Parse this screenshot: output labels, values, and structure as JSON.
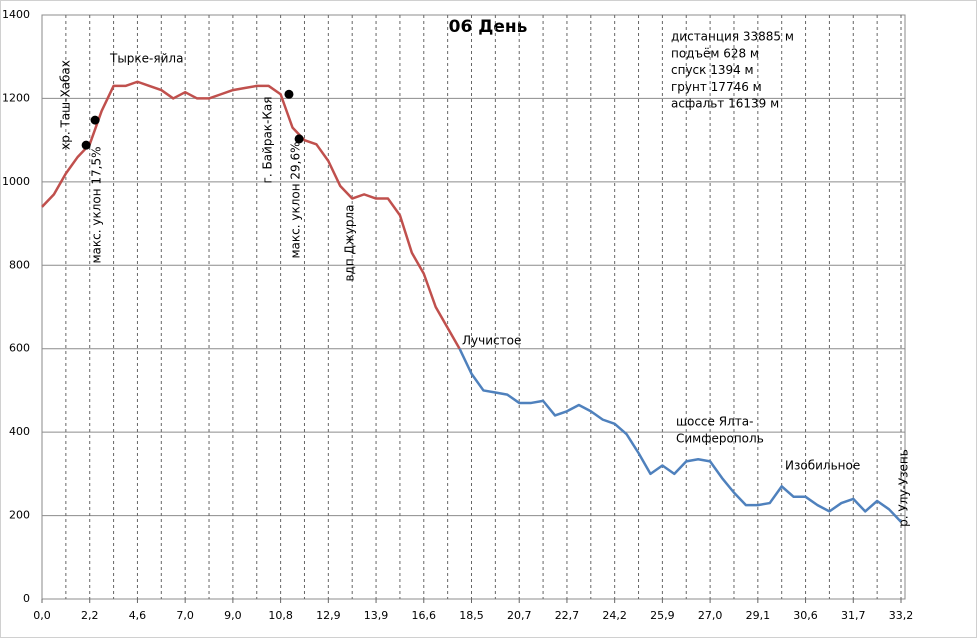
{
  "chart_data": {
    "type": "line",
    "title": "06 День",
    "stats": [
      "дистанция 33885 м",
      "подъём 628 м",
      "спуск 1394 м",
      "грунт 17746 м",
      "асфальт 16139 м"
    ],
    "categories": [
      "0,0",
      null,
      null,
      null,
      "2,2",
      null,
      null,
      null,
      "4,6",
      null,
      null,
      null,
      "7,0",
      null,
      null,
      null,
      "9,0",
      null,
      null,
      null,
      "10,8",
      null,
      null,
      null,
      "12,9",
      null,
      null,
      null,
      "13,9",
      null,
      null,
      null,
      "16,6",
      null,
      null,
      null,
      "18,5",
      null,
      null,
      null,
      "20,7",
      null,
      null,
      null,
      "22,7",
      null,
      null,
      null,
      "24,2",
      null,
      null,
      null,
      "25,9",
      null,
      null,
      null,
      "27,0",
      null,
      null,
      null,
      "29,1",
      null,
      null,
      null,
      "30,6",
      null,
      null,
      null,
      "31,7",
      null,
      null,
      null,
      "33,2"
    ],
    "series": [
      {
        "color": "#c0504d",
        "values": [
          940,
          970,
          1020,
          1060,
          1090,
          1170,
          1230,
          1230,
          1240,
          1230,
          1220,
          1200,
          1215,
          1200,
          1200,
          1210,
          1220,
          1225,
          1230,
          1230,
          1210,
          1130,
          1100,
          1090,
          1050,
          990,
          960,
          970,
          960,
          960,
          920,
          830,
          780,
          700,
          650,
          600,
          null,
          null,
          null,
          null,
          null,
          null,
          null,
          null,
          null,
          null,
          null,
          null,
          null,
          null,
          null,
          null,
          null,
          null,
          null,
          null,
          null,
          null,
          null,
          null,
          null,
          null,
          null,
          null,
          null,
          null,
          null,
          null,
          null,
          null,
          null,
          null,
          null
        ]
      },
      {
        "color": "#4f81bd",
        "values": [
          null,
          null,
          null,
          null,
          null,
          null,
          null,
          null,
          null,
          null,
          null,
          null,
          null,
          null,
          null,
          null,
          null,
          null,
          null,
          null,
          null,
          null,
          null,
          null,
          null,
          null,
          null,
          null,
          null,
          null,
          null,
          null,
          null,
          null,
          null,
          600,
          540,
          500,
          495,
          490,
          470,
          470,
          475,
          440,
          450,
          465,
          450,
          430,
          420,
          395,
          350,
          300,
          320,
          300,
          330,
          335,
          330,
          290,
          255,
          225,
          225,
          230,
          270,
          245,
          245,
          225,
          210,
          230,
          240,
          210,
          235,
          215,
          185
        ]
      }
    ],
    "markers": [
      {
        "x": 3.7,
        "y": 1088
      },
      {
        "x": 4.45,
        "y": 1148
      },
      {
        "x": 20.7,
        "y": 1210
      },
      {
        "x": 21.55,
        "y": 1103
      }
    ],
    "annotations": [
      "хр. Таш-Хабах",
      "макс. уклон 17,5%",
      "Тырке-яйла",
      "г. Байрак-Кая",
      "макс. уклон 29,6%",
      "вдп Джурла",
      "Лучистое",
      "шоссе Ялта-",
      "Симферополь",
      "Изобильное",
      "р. Улу-Узень"
    ],
    "ylim": [
      0,
      1400
    ],
    "yticks": [
      0,
      200,
      400,
      600,
      800,
      1000,
      1200,
      1400
    ],
    "grid": true
  }
}
